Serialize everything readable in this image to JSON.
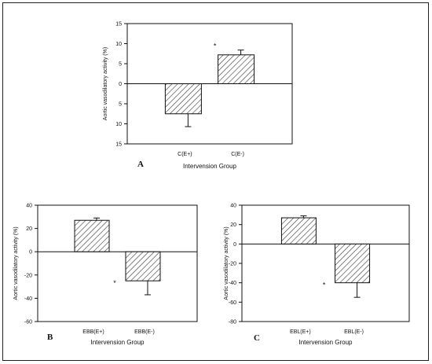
{
  "chart_data": [
    {
      "id": "A",
      "type": "bar",
      "panel_label": "A",
      "categories": [
        "C(E+)",
        "C(E-)"
      ],
      "values": [
        -7.5,
        7.2
      ],
      "errors": [
        3.2,
        1.2
      ],
      "error_direction": [
        "down",
        "up"
      ],
      "significance": [
        "",
        "*"
      ],
      "xlabel": "Intervension Group",
      "ylabel": "Aortic vasodilatory activity (%)",
      "ylim": [
        -15,
        15
      ],
      "yticks": [
        15,
        10,
        5,
        0,
        -5,
        -10,
        -15
      ],
      "ytick_labels": [
        "15",
        "10",
        "5",
        "0",
        "5",
        "10",
        "15"
      ],
      "grid": false,
      "bar_fill": "hatched"
    },
    {
      "id": "B",
      "type": "bar",
      "panel_label": "B",
      "categories": [
        "EBB(E+)",
        "EBB(E-)"
      ],
      "values": [
        27,
        -25
      ],
      "errors": [
        2,
        12
      ],
      "error_direction": [
        "up",
        "down"
      ],
      "significance": [
        "",
        "*"
      ],
      "xlabel": "Intervension Group",
      "ylabel": "Aortic vasodilatory activity (%)",
      "ylim": [
        -60,
        40
      ],
      "yticks": [
        40,
        20,
        0,
        -20,
        -40,
        -60
      ],
      "ytick_labels": [
        "40",
        "20",
        "0",
        "-20",
        "-40",
        "-60"
      ],
      "grid": false,
      "bar_fill": "hatched"
    },
    {
      "id": "C",
      "type": "bar",
      "panel_label": "C",
      "categories": [
        "EBL(E+)",
        "EBL(E-)"
      ],
      "values": [
        27,
        -40
      ],
      "errors": [
        2,
        15
      ],
      "error_direction": [
        "up",
        "down"
      ],
      "significance": [
        "",
        "*"
      ],
      "xlabel": "Intervension Group",
      "ylabel": "Aortic vasodilatory activity (%)",
      "ylim": [
        -80,
        40
      ],
      "yticks": [
        40,
        20,
        0,
        -20,
        -40,
        -60,
        -80
      ],
      "ytick_labels": [
        "40",
        "20",
        "0",
        "-20",
        "-40",
        "-60",
        "-80"
      ],
      "grid": false,
      "bar_fill": "hatched"
    }
  ]
}
